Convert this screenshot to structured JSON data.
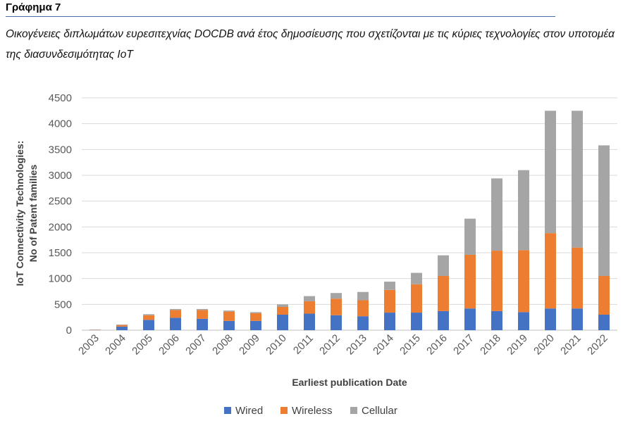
{
  "figure": {
    "title": "Γράφημα 7",
    "caption": "Οικογένειες διπλωμάτων ευρεσιτεχνίας DOCDB ανά έτος δημοσίευσης που σχετίζονται με τις κύριες τεχνολογίες στον υποτομέα της διασυνδεσιμότητας IoT"
  },
  "chart_data": {
    "type": "bar",
    "stacked": true,
    "title": "",
    "xlabel": "Earliest publication Date",
    "ylabel": [
      "IoT Connectivity Technologies:",
      "No of Patent families"
    ],
    "ylim": [
      0,
      4500
    ],
    "yticks": [
      0,
      500,
      1000,
      1500,
      2000,
      2500,
      3000,
      3500,
      4000,
      4500
    ],
    "grid": true,
    "legend_position": "bottom",
    "categories": [
      "2003",
      "2004",
      "2005",
      "2006",
      "2007",
      "2008",
      "2009",
      "2010",
      "2011",
      "2012",
      "2013",
      "2014",
      "2015",
      "2016",
      "2017",
      "2018",
      "2019",
      "2020",
      "2021",
      "2022"
    ],
    "series": [
      {
        "name": "Wired",
        "color": "#4472C4",
        "values": [
          5,
          70,
          200,
          240,
          220,
          180,
          180,
          300,
          320,
          290,
          270,
          340,
          340,
          370,
          420,
          370,
          350,
          420,
          420,
          300
        ]
      },
      {
        "name": "Wireless",
        "color": "#ED7D31",
        "values": [
          5,
          30,
          90,
          150,
          170,
          180,
          150,
          150,
          240,
          320,
          310,
          440,
          550,
          680,
          1040,
          1170,
          1200,
          1460,
          1180,
          750
        ]
      },
      {
        "name": "Cellular",
        "color": "#A5A5A5",
        "values": [
          0,
          10,
          20,
          20,
          20,
          20,
          20,
          50,
          100,
          110,
          160,
          160,
          220,
          400,
          700,
          1400,
          1550,
          2370,
          2650,
          2530
        ]
      }
    ]
  }
}
